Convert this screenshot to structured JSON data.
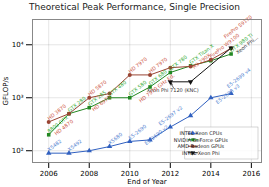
{
  "chart_data": {
    "type": "line",
    "title": "Theoretical Peak Performance, Single Precision",
    "xlabel": "End of Year",
    "ylabel": "GFLOP/s",
    "log": "y",
    "xlim": [
      2005.2,
      2016.5
    ],
    "ylim": [
      60,
      30000
    ],
    "xticks": [
      2006,
      2008,
      2010,
      2012,
      2014,
      2016
    ],
    "yticks": [
      {
        "value": 100,
        "label": "10²"
      },
      {
        "value": 1000,
        "label": "10³"
      },
      {
        "value": 10000,
        "label": "10⁴"
      }
    ],
    "grid": true,
    "legend": "lower right",
    "series": [
      {
        "name": "INTEL Xeon CPUs",
        "color": "#3060c0",
        "marker": "triangle_up",
        "x": [
          2006,
          2007,
          2008,
          2009,
          2010,
          2011,
          2012,
          2013,
          2014,
          2015
        ],
        "values": [
          90,
          90,
          100,
          120,
          150,
          160,
          280,
          460,
          1000,
          1200
        ]
      },
      {
        "name": "NVIDIA GeForce GPUs",
        "color": "#228822",
        "marker": "square",
        "x": [
          2006,
          2007,
          2008,
          2009,
          2010,
          2011,
          2012,
          2013,
          2014,
          2015
        ],
        "values": [
          200,
          500,
          650,
          1000,
          1000,
          1600,
          3000,
          4000,
          5000,
          6700
        ]
      },
      {
        "name": "AMD Radeon GPUs",
        "color": "#994433",
        "marker": "circle",
        "x": [
          2006,
          2007,
          2008,
          2009,
          2010,
          2011,
          2012,
          2013,
          2014,
          2015
        ],
        "values": [
          350,
          500,
          1000,
          1200,
          2700,
          2700,
          3700,
          3900,
          5200,
          8600
        ]
      },
      {
        "name": "INTEL Xeon Phi",
        "color": "#111111",
        "marker": "triangle_down",
        "x": [
          2012,
          2013,
          2015
        ],
        "values": [
          2000,
          2000,
          8700
        ]
      }
    ],
    "annotations": [
      {
        "text": "X5482",
        "x": 2006,
        "y": 90,
        "color": "#5080d0"
      },
      {
        "text": "X5492",
        "x": 2007,
        "y": 90,
        "color": "#5080d0"
      },
      {
        "text": "X5680",
        "x": 2009,
        "y": 120,
        "color": "#5080d0"
      },
      {
        "text": "E5-2690",
        "x": 2010,
        "y": 150,
        "color": "#5080d0"
      },
      {
        "text": "E5-2690 v2",
        "x": 2012,
        "y": 280,
        "color": "#5080d0"
      },
      {
        "text": "E5-2697 v2",
        "x": 2013,
        "y": 460,
        "color": "#5080d0"
      },
      {
        "text": "E5-2698 v3",
        "x": 2014,
        "y": 1000,
        "color": "#5080d0"
      },
      {
        "text": "E5-2699 v4",
        "x": 2015,
        "y": 1200,
        "color": "#5080d0"
      },
      {
        "text": "8800 GTX",
        "x": 2006,
        "y": 200,
        "color": "#33aa33"
      },
      {
        "text": "GTX 280",
        "x": 2007,
        "y": 500,
        "color": "#33aa33"
      },
      {
        "text": "GTX 285",
        "x": 2008,
        "y": 650,
        "color": "#33aa33"
      },
      {
        "text": "GTX 480",
        "x": 2009,
        "y": 1000,
        "color": "#33aa33"
      },
      {
        "text": "GTX 580",
        "x": 2010,
        "y": 1000,
        "color": "#33aa33"
      },
      {
        "text": "GTX 680",
        "x": 2011,
        "y": 1600,
        "color": "#33aa33"
      },
      {
        "text": "GTX 780",
        "x": 2012,
        "y": 3000,
        "color": "#33aa33"
      },
      {
        "text": "GTX Titan X",
        "x": 2013,
        "y": 4000,
        "color": "#33aa33"
      },
      {
        "text": "GTX 980 Ti",
        "x": 2015,
        "y": 6700,
        "color": "#33aa33"
      },
      {
        "text": "HD 3870",
        "x": 2006,
        "y": 350,
        "color": "#cc5544"
      },
      {
        "text": "HD 4870",
        "x": 2007,
        "y": 500,
        "color": "#cc5544"
      },
      {
        "text": "HD 5870",
        "x": 2008,
        "y": 1000,
        "color": "#cc5544"
      },
      {
        "text": "HD 6970",
        "x": 2009,
        "y": 1200,
        "color": "#cc5544"
      },
      {
        "text": "HD 7970",
        "x": 2010,
        "y": 2700,
        "color": "#cc5544"
      },
      {
        "text": "HD 7970",
        "x": 2011,
        "y": 2700,
        "color": "#cc5544"
      },
      {
        "text": "HD 7970 GHz Ed.",
        "x": 2012,
        "y": 3700,
        "color": "#cc5544"
      },
      {
        "text": "R9 290X",
        "x": 2013,
        "y": 3900,
        "color": "#cc5544"
      },
      {
        "text": "FirePro W9100",
        "x": 2014,
        "y": 5200,
        "color": "#cc5544"
      },
      {
        "text": "FirePro S9170",
        "x": 2015,
        "y": 8600,
        "color": "#cc5544"
      },
      {
        "text": "Xeon Phi 7120 (KNC)",
        "x": 2012,
        "y": 2000,
        "color": "#333333",
        "arrow": true
      },
      {
        "text": "Xeon Phi...",
        "x": 2015,
        "y": 8700,
        "color": "#333333"
      }
    ]
  }
}
